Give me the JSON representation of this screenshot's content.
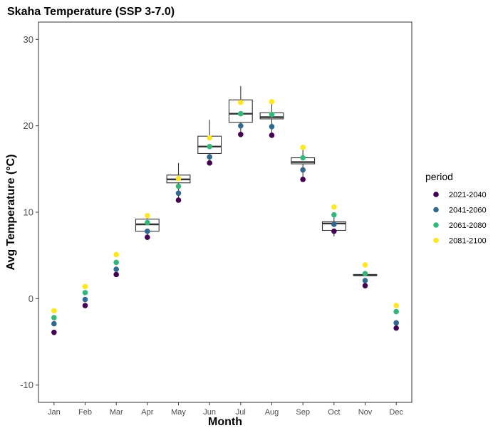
{
  "chart_data": {
    "type": "box+scatter",
    "title": "Skaha Temperature (SSP 3-7.0)",
    "xlabel": "Month",
    "ylabel": "Avg Temperature (°C)",
    "ylim": [
      -12,
      32
    ],
    "yticks": [
      -10,
      0,
      10,
      20,
      30
    ],
    "grid": false,
    "legend": {
      "title": "period",
      "placement": "right"
    },
    "categories": [
      "Jan",
      "Feb",
      "Mar",
      "Apr",
      "May",
      "Jun",
      "Jul",
      "Aug",
      "Sep",
      "Oct",
      "Nov",
      "Dec"
    ],
    "series": [
      {
        "name": "2021-2040",
        "color": "#440154",
        "values": [
          -3.9,
          -0.8,
          2.8,
          7.1,
          11.4,
          15.7,
          19.0,
          18.9,
          13.8,
          7.8,
          1.5,
          -3.4
        ]
      },
      {
        "name": "2041-2060",
        "color": "#31688E",
        "values": [
          -2.9,
          -0.1,
          3.4,
          7.8,
          12.2,
          16.4,
          20.0,
          19.9,
          14.9,
          8.6,
          2.1,
          -2.8
        ]
      },
      {
        "name": "2061-2080",
        "color": "#35B779",
        "values": [
          -2.2,
          0.7,
          4.2,
          8.8,
          13.0,
          17.6,
          21.4,
          21.3,
          16.3,
          9.7,
          2.9,
          -1.5
        ]
      },
      {
        "name": "2081-2100",
        "color": "#FDE725",
        "values": [
          -1.4,
          1.4,
          5.1,
          9.6,
          13.9,
          18.6,
          22.7,
          22.8,
          17.5,
          10.6,
          3.9,
          -0.8
        ]
      }
    ],
    "boxes": [
      {
        "category": "Apr",
        "whisker_low": 7.1,
        "q1": 7.8,
        "median": 8.6,
        "q3": 9.2,
        "whisker_high": 9.6
      },
      {
        "category": "May",
        "whisker_low": 11.4,
        "q1": 13.4,
        "median": 13.8,
        "q3": 14.3,
        "whisker_high": 15.7
      },
      {
        "category": "Jun",
        "whisker_low": 15.7,
        "q1": 16.8,
        "median": 17.6,
        "q3": 18.8,
        "whisker_high": 20.7
      },
      {
        "category": "Jul",
        "whisker_low": 19.0,
        "q1": 20.4,
        "median": 21.4,
        "q3": 23.0,
        "whisker_high": 24.6
      },
      {
        "category": "Aug",
        "whisker_low": 18.9,
        "q1": 20.8,
        "median": 21.0,
        "q3": 21.5,
        "whisker_high": 22.8
      },
      {
        "category": "Sep",
        "whisker_low": 13.8,
        "q1": 15.6,
        "median": 15.8,
        "q3": 16.3,
        "whisker_high": 17.5
      },
      {
        "category": "Oct",
        "whisker_low": 7.2,
        "q1": 7.9,
        "median": 8.7,
        "q3": 8.9,
        "whisker_high": 9.7
      },
      {
        "category": "Nov",
        "whisker_low": 2.6,
        "q1": 2.7,
        "median": 2.7,
        "q3": 2.8,
        "whisker_high": 2.9
      }
    ]
  }
}
